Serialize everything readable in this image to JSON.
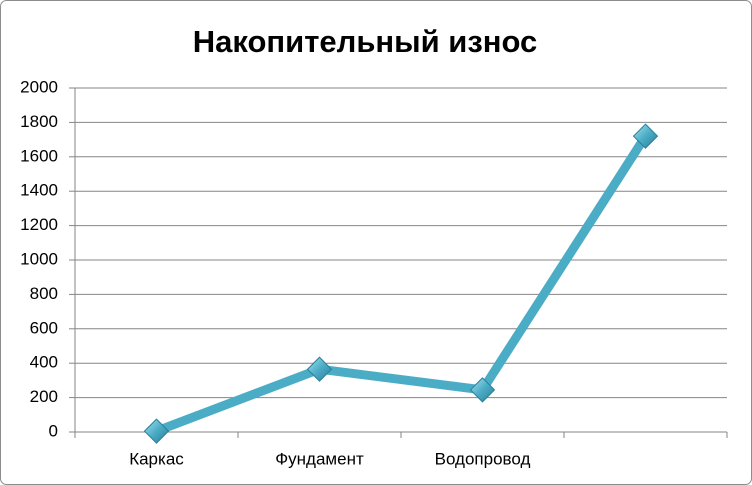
{
  "chart_data": {
    "type": "line",
    "title": "Накопительный износ",
    "categories": [
      "Каркас",
      "Фундамент",
      "Водопровод",
      null
    ],
    "series": [
      {
        "color": "#4bacc6",
        "values": [
          5,
          365,
          245,
          1720
        ]
      }
    ],
    "ylim": [
      0,
      2000
    ],
    "yticks": [
      0,
      200,
      400,
      600,
      800,
      1000,
      1200,
      1400,
      1600,
      1800,
      2000
    ],
    "grid": true
  }
}
